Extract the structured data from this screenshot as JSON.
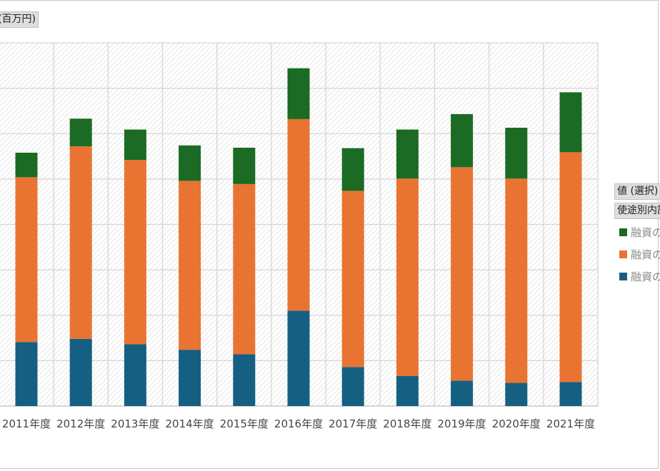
{
  "unit_label": "(百万円)",
  "legend": {
    "title": "値 (選択)",
    "field": "使途別内訳",
    "entries": [
      "融資の",
      "融資の",
      "融資の"
    ]
  },
  "colors": {
    "top": "#1b6b24",
    "middle": "#e97432",
    "bottom": "#156082",
    "grid": "#d6d6d6",
    "hatch": "#d9d9d9"
  },
  "chart_data": {
    "type": "bar",
    "stacked": true,
    "categories": [
      "2011年度",
      "2012年度",
      "2013年度",
      "2014年度",
      "2015年度",
      "2016年度",
      "2017年度",
      "2018年度",
      "2019年度",
      "2020年度",
      "2021年度"
    ],
    "series": [
      {
        "values": [
          1.41,
          1.48,
          1.36,
          1.24,
          1.14,
          2.1,
          0.86,
          0.66,
          0.56,
          0.51,
          0.53
        ]
      },
      {
        "values": [
          3.63,
          4.24,
          4.06,
          3.72,
          3.75,
          4.22,
          3.88,
          4.35,
          4.7,
          4.5,
          5.06
        ]
      },
      {
        "values": [
          0.54,
          0.61,
          0.67,
          0.78,
          0.8,
          1.12,
          0.94,
          1.08,
          1.17,
          1.12,
          1.32
        ]
      }
    ],
    "ylim": [
      0,
      8
    ],
    "grid": true,
    "legend_position": "right"
  }
}
